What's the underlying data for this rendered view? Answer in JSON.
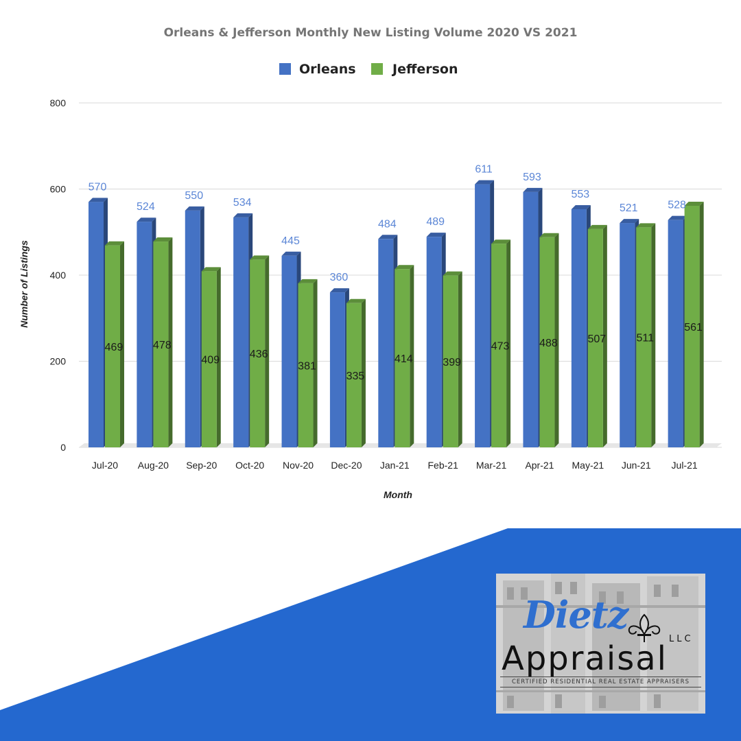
{
  "chart_data": {
    "type": "bar",
    "title": "Orleans & Jefferson  Monthly New Listing Volume 2020 VS 2021",
    "xlabel": "Month",
    "ylabel": "Number of Listings",
    "ylim": [
      0,
      800
    ],
    "yticks": [
      "0",
      "200",
      "400",
      "600",
      "800"
    ],
    "categories": [
      "Jul-20",
      "Aug-20",
      "Sep-20",
      "Oct-20",
      "Nov-20",
      "Dec-20",
      "Jan-21",
      "Feb-21",
      "Mar-21",
      "Apr-21",
      "May-21",
      "Jun-21",
      "Jul-21"
    ],
    "series": [
      {
        "name": "Orleans",
        "color": "#4472c4",
        "values": [
          570,
          524,
          550,
          534,
          445,
          360,
          484,
          489,
          611,
          593,
          553,
          521,
          528
        ]
      },
      {
        "name": "Jefferson",
        "color": "#70ad47",
        "values": [
          469,
          478,
          409,
          436,
          381,
          335,
          414,
          399,
          473,
          488,
          507,
          511,
          561
        ]
      }
    ],
    "grid": true,
    "legend": "top-center"
  },
  "decoration": {
    "banner_color": "#2468cf"
  },
  "logo": {
    "script_text": "Dietz",
    "llc_text": "LLC",
    "main_text": "Appraisal",
    "tagline": "CERTIFIED RESIDENTIAL REAL ESTATE APPRAISERS"
  }
}
